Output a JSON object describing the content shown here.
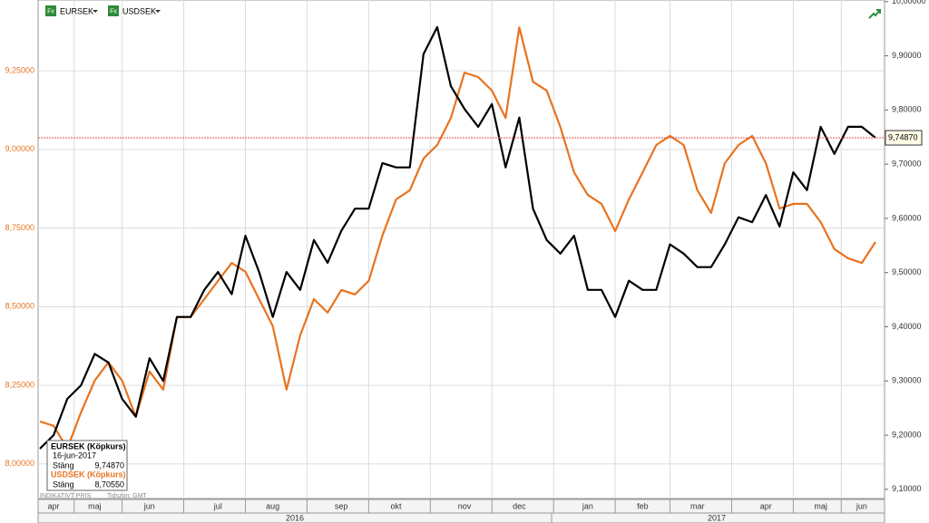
{
  "chart_data": {
    "type": "line",
    "categories": [
      null,
      "apr",
      null,
      null,
      "maj",
      null,
      null,
      null,
      "jun",
      null,
      null,
      null,
      null,
      "jul",
      null,
      null,
      null,
      "aug",
      null,
      null,
      null,
      null,
      "sep",
      null,
      null,
      null,
      "okt",
      null,
      null,
      null,
      null,
      "nov",
      null,
      null,
      null,
      "dec",
      null,
      null,
      null,
      null,
      "jan",
      null,
      null,
      null,
      "feb",
      null,
      null,
      null,
      "mar",
      null,
      null,
      null,
      null,
      "apr",
      null,
      null,
      null,
      "maj",
      null,
      null,
      "jun",
      null
    ],
    "years": [
      "2016",
      "2017"
    ],
    "series": [
      {
        "name": "EURSEK",
        "color": "#000000",
        "axis": "y2",
        "values": [
          9.175,
          9.2,
          9.267,
          9.292,
          9.35,
          9.334,
          9.267,
          9.234,
          9.342,
          9.3,
          9.418,
          9.418,
          9.468,
          9.501,
          9.46,
          9.568,
          9.501,
          9.418,
          9.501,
          9.468,
          9.56,
          9.518,
          9.577,
          9.618,
          9.618,
          9.702,
          9.694,
          9.694,
          9.903,
          9.953,
          9.844,
          9.802,
          9.769,
          9.811,
          9.694,
          9.786,
          9.618,
          9.56,
          9.535,
          9.568,
          9.468,
          9.468,
          9.418,
          9.485,
          9.468,
          9.468,
          9.552,
          9.535,
          9.51,
          9.51,
          9.552,
          9.602,
          9.593,
          9.643,
          9.585,
          9.685,
          9.652,
          9.769,
          9.719,
          9.769,
          9.769,
          9.7487
        ]
      },
      {
        "name": "USDSEK",
        "color": "#e8731f",
        "values": [
          8.135,
          8.121,
          8.049,
          8.164,
          8.265,
          8.323,
          8.265,
          8.15,
          8.294,
          8.236,
          8.467,
          8.467,
          8.524,
          8.582,
          8.639,
          8.611,
          8.524,
          8.438,
          8.236,
          8.409,
          8.524,
          8.481,
          8.553,
          8.539,
          8.582,
          8.726,
          8.841,
          8.87,
          8.971,
          9.014,
          9.1,
          9.244,
          9.23,
          9.187,
          9.1,
          9.388,
          9.215,
          9.187,
          9.071,
          8.927,
          8.855,
          8.827,
          8.74,
          8.841,
          8.927,
          9.014,
          9.043,
          9.014,
          8.87,
          8.798,
          8.956,
          9.014,
          9.043,
          8.956,
          8.812,
          8.827,
          8.827,
          8.769,
          8.683,
          8.654,
          8.639,
          8.7055
        ]
      }
    ],
    "ylim": [
      7.89,
      9.475
    ],
    "yticks": [
      {
        "value": 8.0,
        "label": "8,00000"
      },
      {
        "value": 8.25,
        "label": "8,25000"
      },
      {
        "value": 8.5,
        "label": "8,50000"
      },
      {
        "value": 8.75,
        "label": "8,75000"
      },
      {
        "value": 9.0,
        "label": "9,00000"
      },
      {
        "value": 9.25,
        "label": "9,25000"
      }
    ],
    "y2lim": [
      9.083,
      10.003
    ],
    "y2ticks": [
      {
        "value": 9.1,
        "label": "9,10000"
      },
      {
        "value": 9.2,
        "label": "9,20000"
      },
      {
        "value": 9.3,
        "label": "9,30000"
      },
      {
        "value": 9.4,
        "label": "9,40000"
      },
      {
        "value": 9.5,
        "label": "9,50000"
      },
      {
        "value": 9.6,
        "label": "9,60000"
      },
      {
        "value": 9.7,
        "label": "9,70000"
      },
      {
        "value": 9.8,
        "label": "9,80000"
      },
      {
        "value": 9.9,
        "label": "9,90000"
      },
      {
        "value": 10.0,
        "label": "10,00000"
      }
    ],
    "reference": {
      "value": 9.7487,
      "label": "9,74870",
      "axis": "y2",
      "color": "#e05050"
    },
    "legend_icon": "Fx",
    "grid": true,
    "info_box": {
      "title1": "EURSEK (Köpkurs)",
      "date": "16-jun-2017",
      "close1_label": "Stäng",
      "close1": "9,74870",
      "title2": "USDSEK (Köpkurs)",
      "close2_label": "Stäng",
      "close2": "8,70550"
    },
    "footer": "INDIKATIVT PRIS",
    "timezone": "Tidszon: GMT"
  }
}
